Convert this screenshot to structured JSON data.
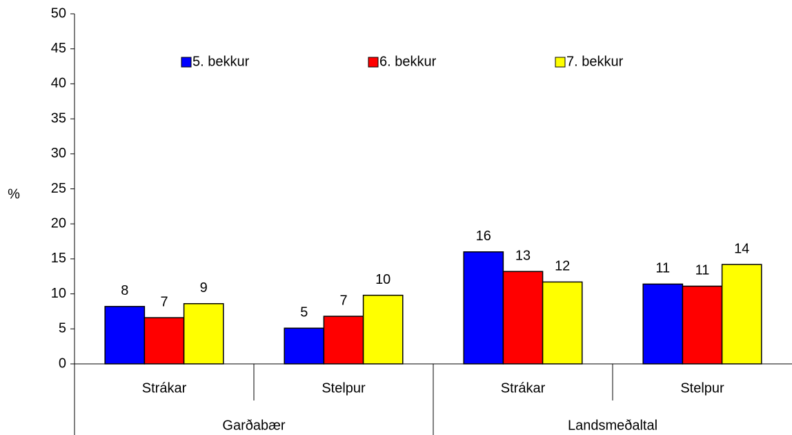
{
  "chart_data": {
    "type": "bar",
    "y_label": "%",
    "categories": [
      "Strákar",
      "Stelpur",
      "Strákar",
      "Stelpur"
    ],
    "groups": [
      "Garðabær",
      "Landsmeðaltal"
    ],
    "series": [
      {
        "name": "5. bekkur",
        "color": "#0000ff",
        "values": [
          8.2,
          5.1,
          16.0,
          11.4
        ],
        "value_labels": [
          "8",
          "5",
          "16",
          "11"
        ]
      },
      {
        "name": "6. bekkur",
        "color": "#ff0000",
        "values": [
          6.6,
          6.8,
          13.2,
          11.1
        ],
        "value_labels": [
          "7",
          "7",
          "13",
          "11"
        ]
      },
      {
        "name": "7. bekkur",
        "color": "#ffff00",
        "values": [
          8.6,
          9.8,
          11.7,
          14.2
        ],
        "value_labels": [
          "9",
          "10",
          "12",
          "14"
        ]
      }
    ],
    "ylim": [
      0,
      50
    ],
    "yticks": [
      0,
      5,
      10,
      15,
      20,
      25,
      30,
      35,
      40,
      45,
      50
    ],
    "legend": "top"
  }
}
